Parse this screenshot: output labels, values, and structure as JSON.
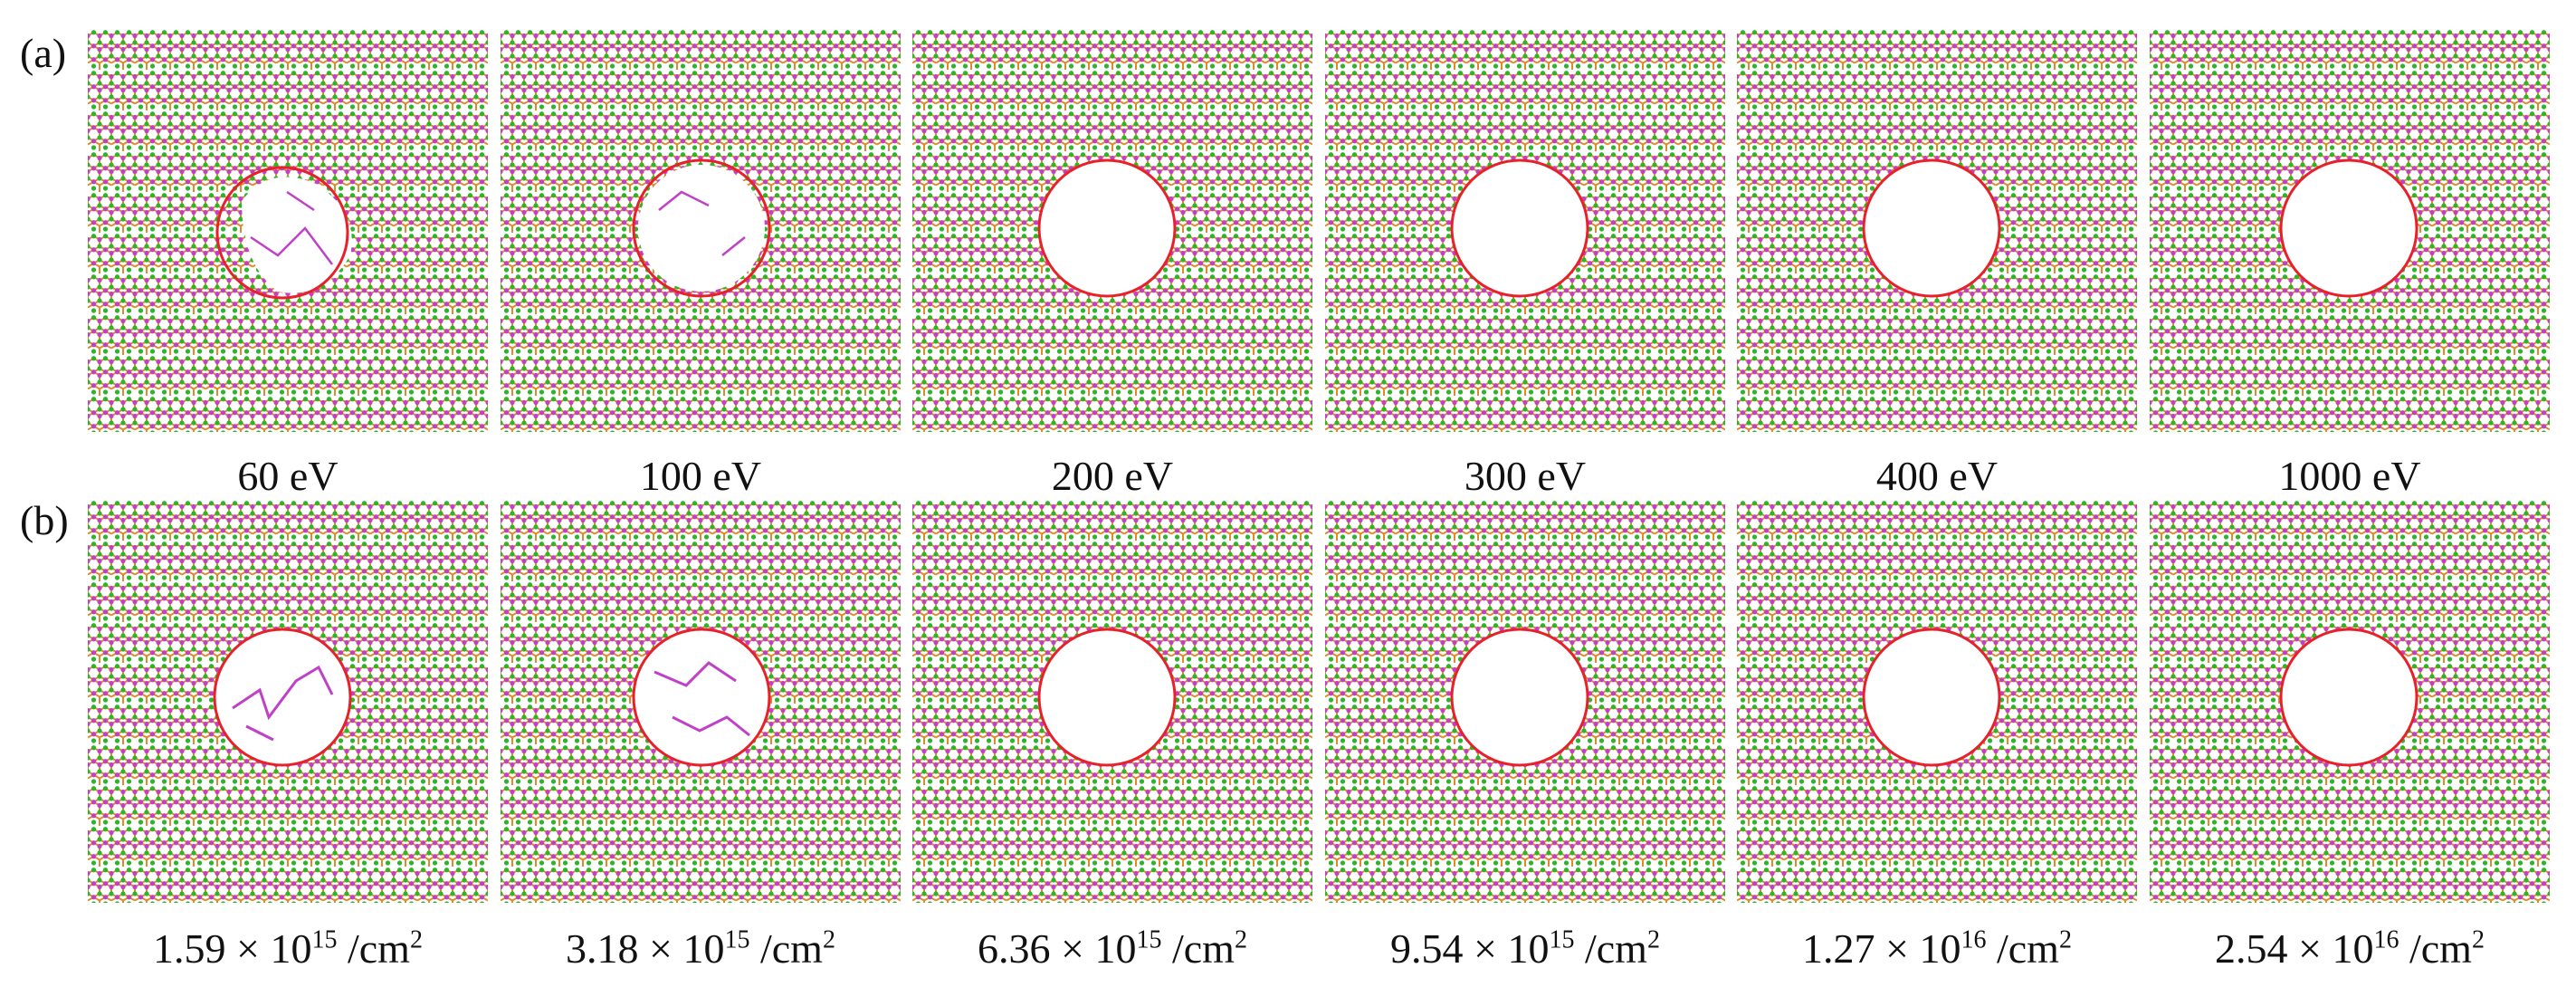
{
  "figure": {
    "row_a": {
      "label": "(a)",
      "panels": [
        {
          "caption": "60 eV",
          "hole": "partial"
        },
        {
          "caption": "100 eV",
          "hole": "partial"
        },
        {
          "caption": "200 eV",
          "hole": "clean"
        },
        {
          "caption": "300 eV",
          "hole": "clean"
        },
        {
          "caption": "400 eV",
          "hole": "clean"
        },
        {
          "caption": "1000 eV",
          "hole": "clean"
        }
      ]
    },
    "row_b": {
      "label": "(b)",
      "panels": [
        {
          "mantissa": "1.59 × 10",
          "exponent": "15",
          "unit": " /cm",
          "unit_exp": "2",
          "hole": "chains"
        },
        {
          "mantissa": "3.18 × 10",
          "exponent": "15",
          "unit": " /cm",
          "unit_exp": "2",
          "hole": "chains"
        },
        {
          "mantissa": "6.36 × 10",
          "exponent": "15",
          "unit": " /cm",
          "unit_exp": "2",
          "hole": "clean"
        },
        {
          "mantissa": "9.54 × 10",
          "exponent": "15",
          "unit": " /cm",
          "unit_exp": "2",
          "hole": "clean"
        },
        {
          "mantissa": "1.27 × 10",
          "exponent": "16",
          "unit": " /cm",
          "unit_exp": "2",
          "hole": "clean"
        },
        {
          "mantissa": "2.54 × 10",
          "exponent": "16",
          "unit": " /cm",
          "unit_exp": "2",
          "hole": "clean"
        }
      ]
    },
    "colors": {
      "atom_green": "#2bb52b",
      "atom_magenta": "#c040c8",
      "bond_orange": "#e08a2a",
      "circle_red": "#e8202a"
    }
  }
}
